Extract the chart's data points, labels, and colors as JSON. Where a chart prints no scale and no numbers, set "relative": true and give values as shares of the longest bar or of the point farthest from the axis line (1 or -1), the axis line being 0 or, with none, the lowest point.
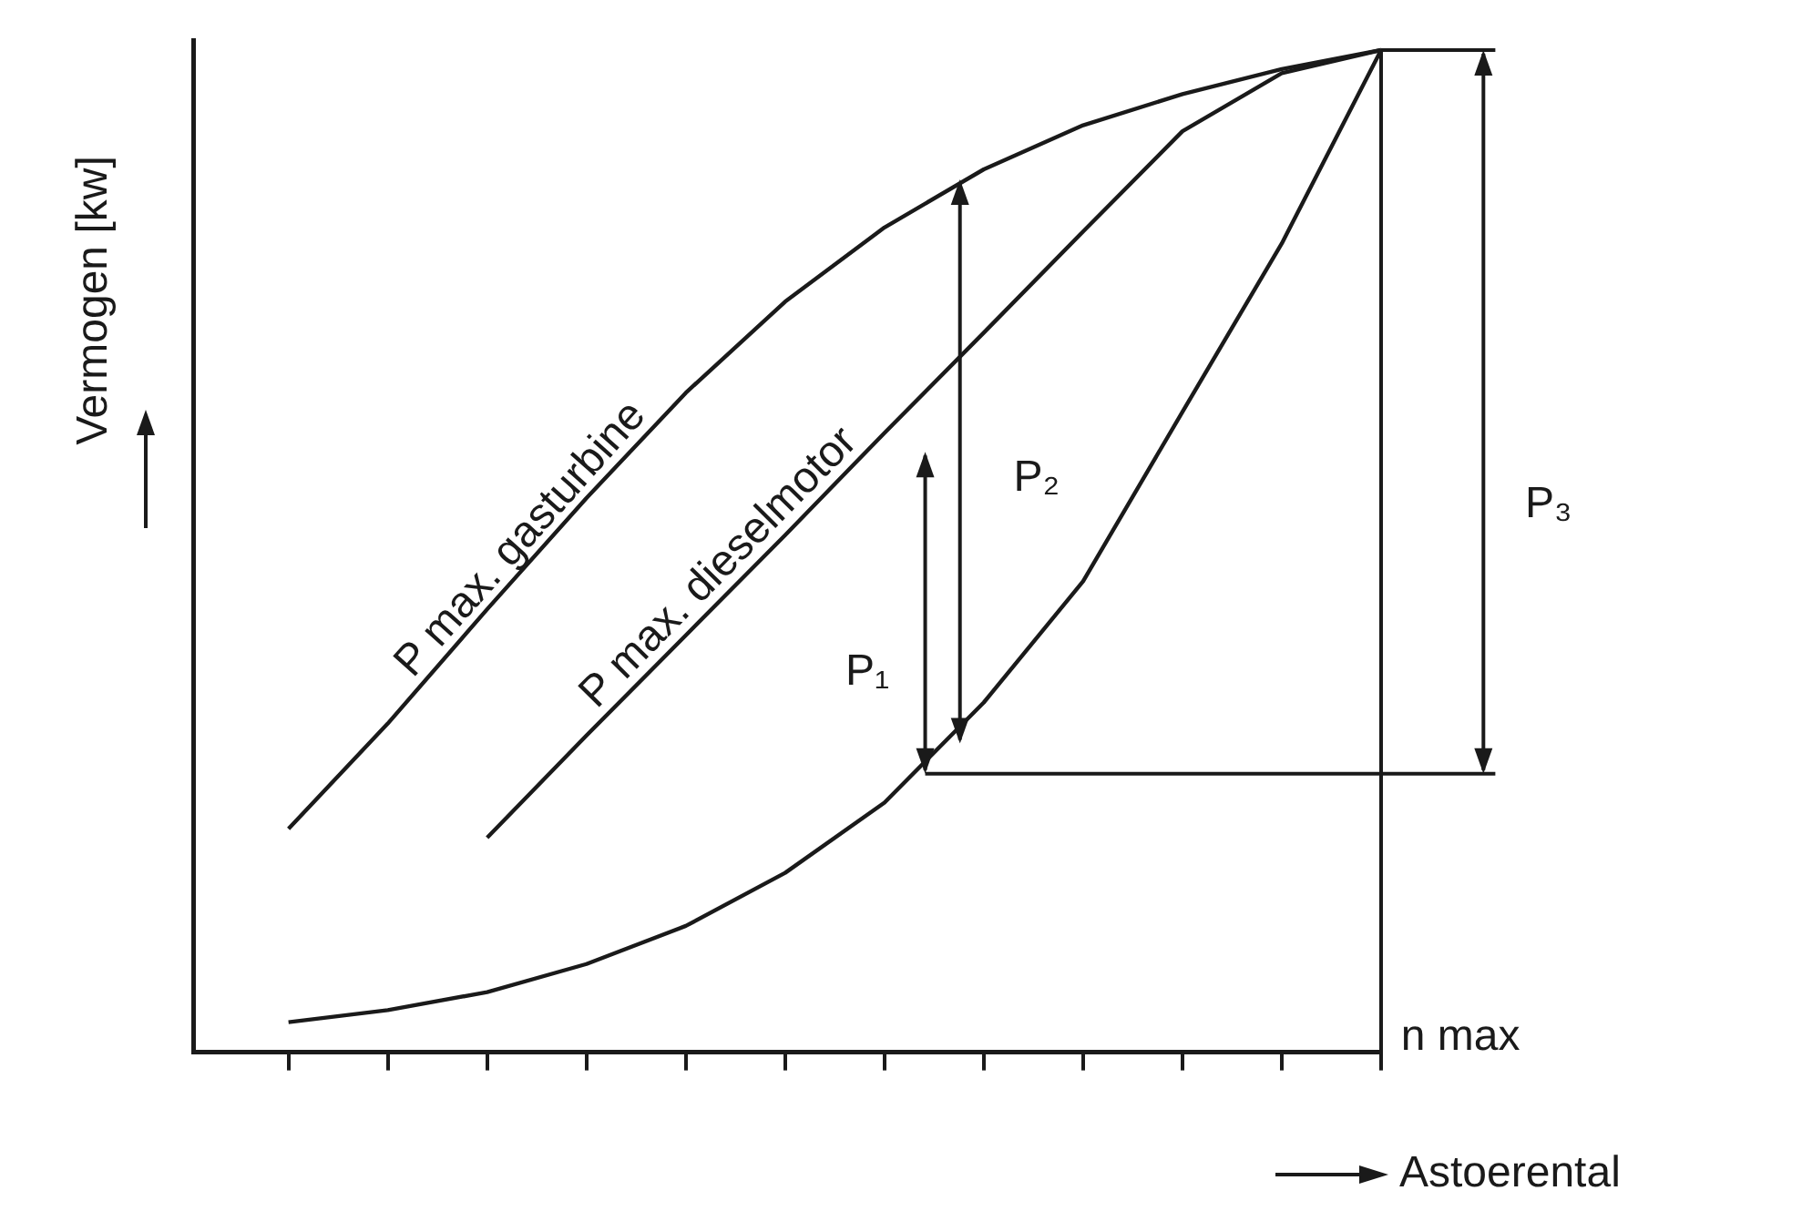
{
  "chart_data": {
    "type": "line",
    "xlabel": "Astoerental",
    "ylabel": "Vermogen [kw]",
    "relative": true,
    "marker": "none",
    "categories": [
      null,
      null,
      null,
      null,
      null,
      null,
      null,
      null,
      null,
      null,
      null,
      null
    ],
    "series": [
      {
        "name": "P max. gasturbine",
        "color": "#1a1a1a",
        "values": [
          0.223,
          0.328,
          0.442,
          0.553,
          0.658,
          0.749,
          0.823,
          0.881,
          0.925,
          0.956,
          0.981,
          1
        ]
      },
      {
        "name": "P max. dieselmotor",
        "color": "#1a1a1a",
        "values": [
          null,
          null,
          0.214,
          0.316,
          0.416,
          0.516,
          0.618,
          0.718,
          0.819,
          0.919,
          0.977,
          1
        ]
      },
      {
        "color": "#1a1a1a",
        "values": [
          0.03,
          0.042,
          0.06,
          0.088,
          0.126,
          0.179,
          0.249,
          0.349,
          0.47,
          0.639,
          0.807,
          1
        ]
      }
    ],
    "annotations": [
      "P₁",
      "P₂",
      "P₃",
      "n max"
    ]
  }
}
